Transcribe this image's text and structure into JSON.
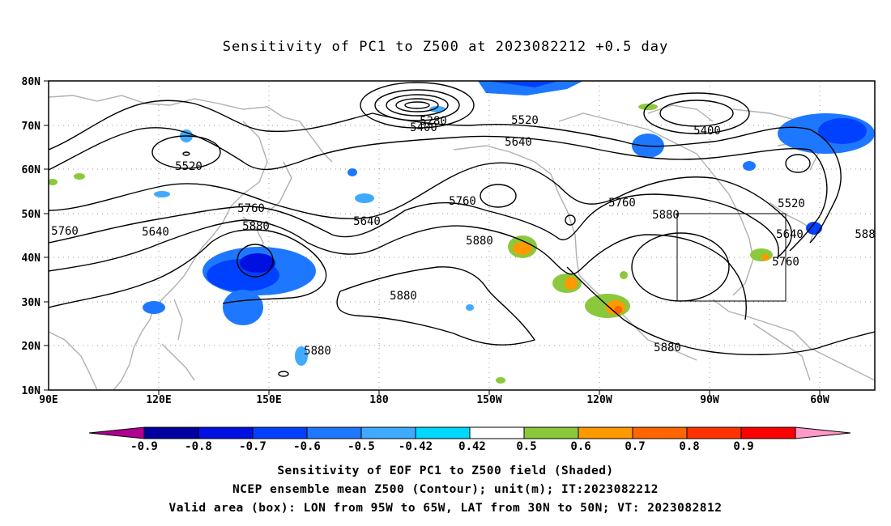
{
  "title": "Sensitivity of PC1 to Z500 at 2023082212 +0.5 day",
  "lat_labels": [
    "80N",
    "70N",
    "60N",
    "50N",
    "40N",
    "30N",
    "20N",
    "10N"
  ],
  "lon_labels": [
    "90E",
    "120E",
    "150E",
    "180",
    "150W",
    "120W",
    "90W",
    "60W"
  ],
  "contour_labels": [
    {
      "text": "5280"
    },
    {
      "text": "5400"
    },
    {
      "text": "5520"
    },
    {
      "text": "5400"
    },
    {
      "text": "5640"
    },
    {
      "text": "5520"
    },
    {
      "text": "5520"
    },
    {
      "text": "5760"
    },
    {
      "text": "5640"
    },
    {
      "text": "5760"
    },
    {
      "text": "5880"
    },
    {
      "text": "5640"
    },
    {
      "text": "5760"
    },
    {
      "text": "5880"
    },
    {
      "text": "5880"
    },
    {
      "text": "5760"
    },
    {
      "text": "5880"
    },
    {
      "text": "5640"
    },
    {
      "text": "5760"
    },
    {
      "text": "588"
    },
    {
      "text": "5880"
    },
    {
      "text": "5880"
    }
  ],
  "colorbar": {
    "labels": [
      "-0.9",
      "-0.8",
      "-0.7",
      "-0.6",
      "-0.5",
      "-0.42",
      "0.42",
      "0.5",
      "0.6",
      "0.7",
      "0.8",
      "0.9"
    ],
    "colors": [
      "#b00090",
      "#0000a0",
      "#0010e0",
      "#0040ff",
      "#1e78ff",
      "#40aaff",
      "#00d8ff",
      "#ffffff",
      "#8cc83c",
      "#ff9900",
      "#ff6600",
      "#ff3300",
      "#ff0000",
      "#ff99c8"
    ]
  },
  "valid_box": {
    "lon_from": -95,
    "lon_to": -65,
    "lat_from": 30,
    "lat_to": 50
  },
  "footer": {
    "line1": "Sensitivity of EOF PC1 to Z500 field (Shaded)",
    "line2": "NCEP ensemble mean Z500 (Contour); unit(m); IT:2023082212",
    "line3": "Valid area (box): LON from 95W to 65W, LAT from 30N to 50N; VT: 2023082812"
  }
}
